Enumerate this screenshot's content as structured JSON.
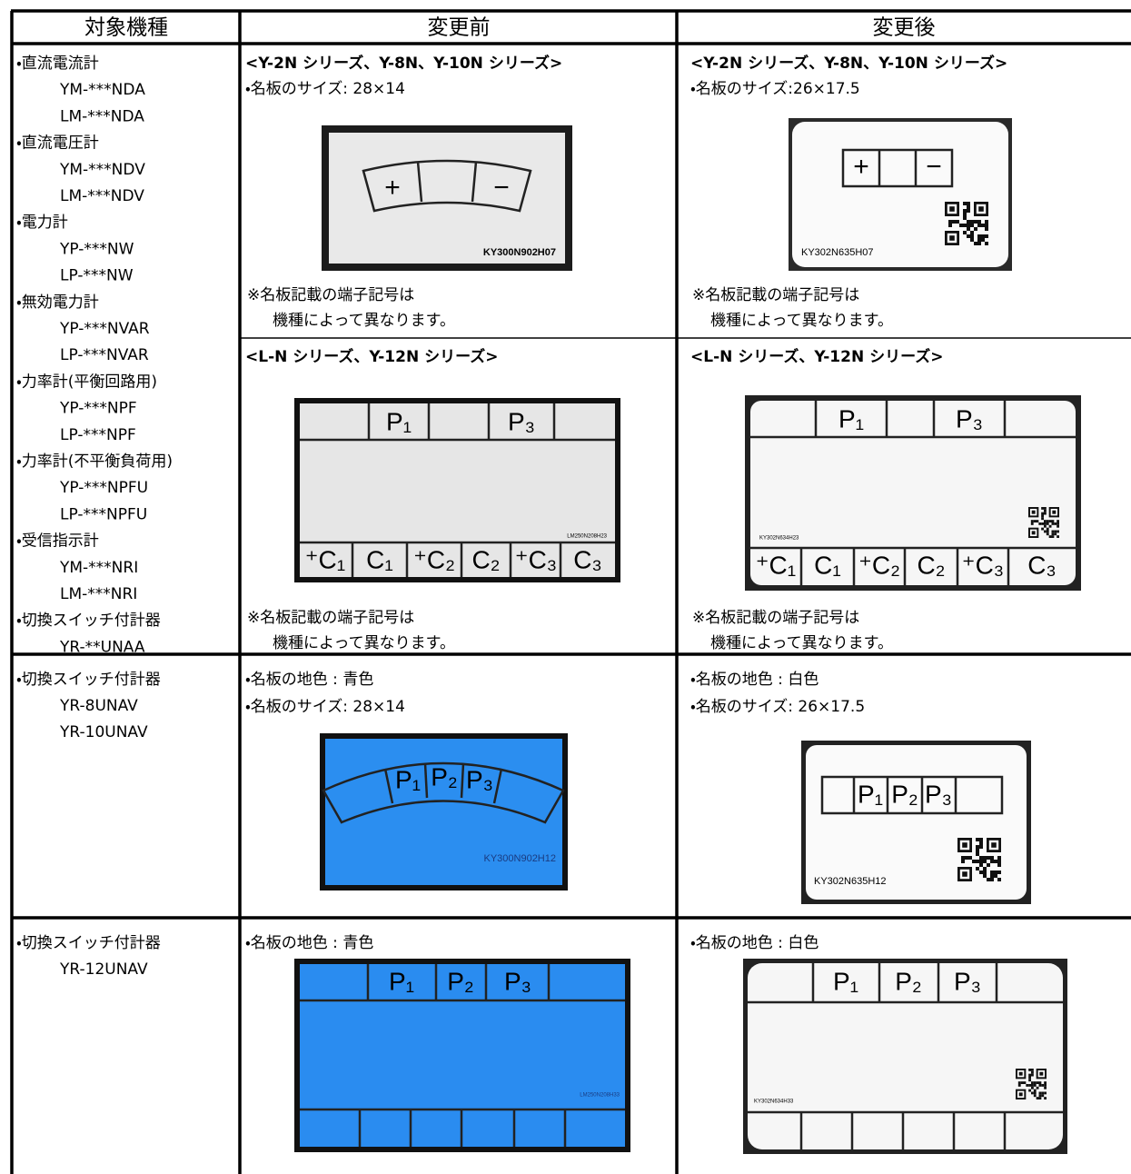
{
  "header": {
    "col1": "対象機種",
    "col2": "変更前",
    "col3": "変更後"
  },
  "row1": {
    "models": [
      "・直流電流計",
      "YM-***NDA",
      "LM-***NDA",
      "・直流電圧計",
      "YM-***NDV",
      "LM-***NDV",
      "・電力計",
      "YP-***NW",
      "LP-***NW",
      "・無効電力計",
      "YP-***NVAR",
      "LP-***NVAR",
      "・力率計(平衡回路用)",
      "YP-***NPF",
      "LP-***NPF",
      "・力率計(不平衡負荷用)",
      "YP-***NPFU",
      "LP-***NPFU",
      "・受信指示計",
      "YM-***NRI",
      "LM-***NRI",
      "・切換スイッチ付計器",
      "YR-**UNAA"
    ],
    "before": {
      "heading1": "<Y-2N シリーズ、Y-8N、Y-10N シリーズ>",
      "size1": "・名板のサイズ:  28×14",
      "plate1": {
        "labels": [
          "+",
          "−"
        ],
        "code": "KY300N902H07"
      },
      "note1": [
        "※名板記載の端子記号は",
        "機種によって異なります。"
      ],
      "heading2": "<L-N シリーズ、Y-12N シリーズ>",
      "plate2": {
        "top": [
          "P₁",
          "P₃"
        ],
        "bottom": [
          "⁺C₁",
          "C₁",
          "⁺C₂",
          "C₂",
          "⁺C₃",
          "C₃"
        ],
        "code": "LM250N208H23"
      },
      "note2": [
        "※名板記載の端子記号は",
        "機種によって異なります。"
      ]
    },
    "after": {
      "heading1": "<Y-2N シリーズ、Y-8N、Y-10N シリーズ>",
      "size1": "・名板のサイズ:26×17.5",
      "plate1": {
        "labels": [
          "+",
          "−"
        ],
        "code": "KY302N635H07"
      },
      "note1": [
        "※名板記載の端子記号は",
        "機種によって異なります。"
      ],
      "heading2": "<L-N シリーズ、Y-12N シリーズ>",
      "plate2": {
        "top": [
          "P₁",
          "P₃"
        ],
        "bottom": [
          "⁺C₁",
          "C₁",
          "⁺C₂",
          "C₂",
          "⁺C₃",
          "C₃"
        ],
        "code": "KY302N634H23"
      },
      "note2": [
        "※名板記載の端子記号は",
        "機種によって異なります。"
      ]
    }
  },
  "row2": {
    "models": [
      "・切換スイッチ付計器",
      "YR-8UNAV",
      "YR-10UNAV"
    ],
    "before": {
      "color": "・名板の地色 :  青色",
      "size": "・名板のサイズ:  28×14",
      "plate": {
        "labels": [
          "P₁",
          "P₂",
          "P₃"
        ],
        "code": "KY300N902H12"
      }
    },
    "after": {
      "color": "・名板の地色 :  白色",
      "size": "・名板のサイズ:  26×17.5",
      "plate": {
        "labels": [
          "P₁",
          "P₂",
          "P₃"
        ],
        "code": "KY302N635H12"
      }
    }
  },
  "row3": {
    "models": [
      "・切換スイッチ付計器",
      "YR-12UNAV"
    ],
    "before": {
      "color": "・名板の地色 :  青色",
      "plate": {
        "labels": [
          "P₁",
          "P₂",
          "P₃"
        ],
        "code": "LM250N208H33"
      }
    },
    "after": {
      "color": "・名板の地色 :  白色",
      "plate": {
        "labels": [
          "P₁",
          "P₂",
          "P₃"
        ],
        "code": "KY302N634H33"
      }
    }
  }
}
